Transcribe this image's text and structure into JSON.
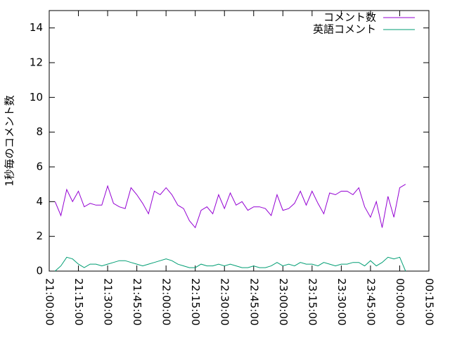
{
  "chart_data": {
    "type": "line",
    "ylabel": "1秒毎のコメント数",
    "x": [
      "21:03:00",
      "21:06:00",
      "21:09:00",
      "21:12:00",
      "21:15:00",
      "21:18:00",
      "21:21:00",
      "21:24:00",
      "21:27:00",
      "21:30:00",
      "21:33:00",
      "21:36:00",
      "21:39:00",
      "21:42:00",
      "21:45:00",
      "21:48:00",
      "21:51:00",
      "21:54:00",
      "21:57:00",
      "22:00:00",
      "22:03:00",
      "22:06:00",
      "22:09:00",
      "22:12:00",
      "22:15:00",
      "22:18:00",
      "22:21:00",
      "22:24:00",
      "22:27:00",
      "22:30:00",
      "22:33:00",
      "22:36:00",
      "22:39:00",
      "22:42:00",
      "22:45:00",
      "22:48:00",
      "22:51:00",
      "22:54:00",
      "22:57:00",
      "23:00:00",
      "23:03:00",
      "23:06:00",
      "23:09:00",
      "23:12:00",
      "23:15:00",
      "23:18:00",
      "23:21:00",
      "23:24:00",
      "23:27:00",
      "23:30:00",
      "23:33:00",
      "23:36:00",
      "23:39:00",
      "23:42:00",
      "23:45:00",
      "23:48:00",
      "23:51:00",
      "23:54:00",
      "23:57:00",
      "00:00:00",
      "00:03:00"
    ],
    "series": [
      {
        "name": "コメント数",
        "color": "#9400d3",
        "values": [
          4.0,
          3.2,
          4.7,
          4.0,
          4.6,
          3.7,
          3.9,
          3.8,
          3.8,
          4.9,
          3.9,
          3.7,
          3.6,
          4.8,
          4.4,
          3.9,
          3.3,
          4.6,
          4.4,
          4.8,
          4.4,
          3.8,
          3.6,
          2.9,
          2.5,
          3.5,
          3.7,
          3.3,
          4.4,
          3.6,
          4.5,
          3.8,
          4.0,
          3.5,
          3.7,
          3.7,
          3.6,
          3.2,
          4.4,
          3.5,
          3.6,
          3.9,
          4.6,
          3.8,
          4.6,
          3.9,
          3.3,
          4.5,
          4.4,
          4.6,
          4.6,
          4.4,
          4.8,
          3.7,
          3.1,
          4.0,
          2.5,
          4.3,
          3.1,
          4.8,
          5.0
        ]
      },
      {
        "name": "英語コメント",
        "color": "#009e73",
        "values": [
          0,
          0.3,
          0.8,
          0.7,
          0.4,
          0.2,
          0.4,
          0.4,
          0.3,
          0.4,
          0.5,
          0.6,
          0.6,
          0.5,
          0.4,
          0.3,
          0.4,
          0.5,
          0.6,
          0.7,
          0.6,
          0.4,
          0.3,
          0.2,
          0.2,
          0.4,
          0.3,
          0.3,
          0.4,
          0.3,
          0.4,
          0.3,
          0.2,
          0.2,
          0.3,
          0.2,
          0.2,
          0.3,
          0.5,
          0.3,
          0.4,
          0.3,
          0.5,
          0.4,
          0.4,
          0.3,
          0.5,
          0.4,
          0.3,
          0.4,
          0.4,
          0.5,
          0.5,
          0.3,
          0.6,
          0.3,
          0.5,
          0.8,
          0.7,
          0.8,
          0.0
        ]
      }
    ],
    "xlim": [
      "21:00:00",
      "00:15:00"
    ],
    "xticks": [
      "21:00:00",
      "21:15:00",
      "21:30:00",
      "21:45:00",
      "22:00:00",
      "22:15:00",
      "22:30:00",
      "22:45:00",
      "23:00:00",
      "23:15:00",
      "23:30:00",
      "23:45:00",
      "00:00:00",
      "00:15:00"
    ],
    "ylim": [
      0,
      15
    ],
    "yticks": [
      0,
      2,
      4,
      6,
      8,
      10,
      12,
      14
    ],
    "legend": "top-right",
    "grid": false
  }
}
